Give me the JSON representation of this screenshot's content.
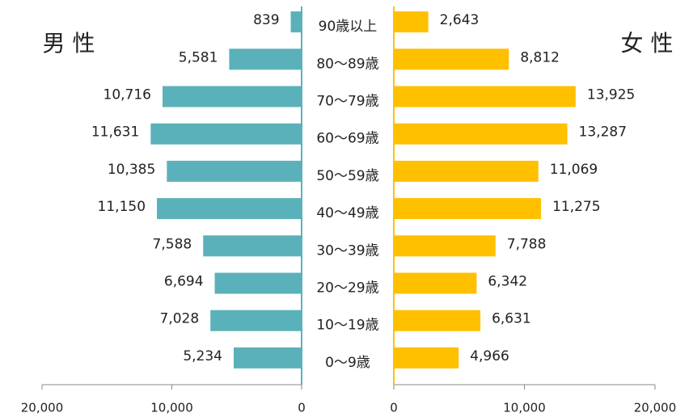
{
  "chart_data": {
    "type": "bar",
    "categories": [
      "90歳以上",
      "80〜89歳",
      "70〜79歳",
      "60〜69歳",
      "50〜59歳",
      "40〜49歳",
      "30〜39歳",
      "20〜29歳",
      "10〜19歳",
      "0〜9歳"
    ],
    "series": [
      {
        "name": "男 性",
        "color": "#5bb1b9",
        "values": [
          839,
          5581,
          10716,
          11631,
          10385,
          11150,
          7588,
          6694,
          7028,
          5234
        ],
        "value_labels": [
          "839",
          "5,581",
          "10,716",
          "11,631",
          "10,385",
          "11,150",
          "7,588",
          "6,694",
          "7,028",
          "5,234"
        ],
        "xlim": [
          20000,
          0
        ],
        "xticks": [
          {
            "value": 20000,
            "label": "20,000"
          },
          {
            "value": 10000,
            "label": "10,000"
          },
          0
        ]
      },
      {
        "name": "女 性",
        "color": "#ffc000",
        "values": [
          2643,
          8812,
          13925,
          13287,
          11069,
          11275,
          7788,
          6342,
          6631,
          4966
        ],
        "value_labels": [
          "2,643",
          "8,812",
          "13,925",
          "13,287",
          "11,069",
          "11,275",
          "7,788",
          "6,342",
          "6,631",
          "4,966"
        ],
        "xlim": [
          0,
          20000
        ],
        "xticks": [
          0,
          {
            "value": 10000,
            "label": "10,000"
          },
          {
            "value": 20000,
            "label": "20,000"
          }
        ]
      }
    ]
  }
}
